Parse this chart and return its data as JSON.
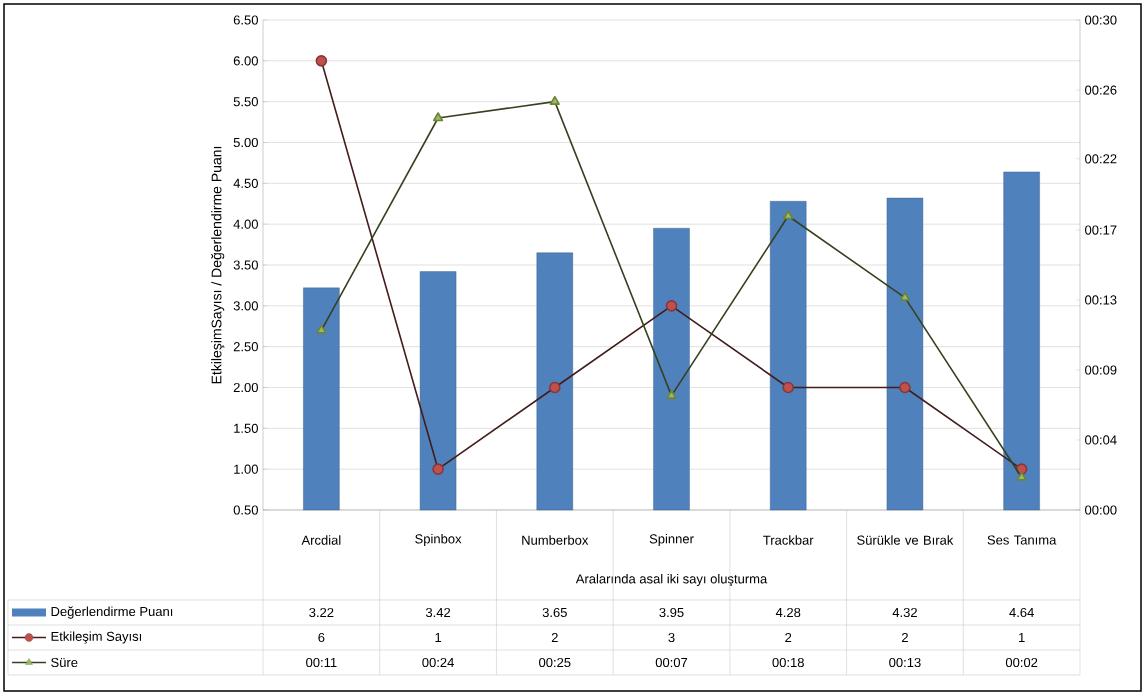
{
  "chart_data": {
    "type": "bar",
    "xlabel": "Aralarında asal iki sayı oluşturma",
    "ylabel": "EtkileşimSayısı / Değerlendirme Puanı",
    "categories": [
      "Arcdial",
      "Spinbox",
      "Numberbox",
      "Spinner",
      "Trackbar",
      "Sürükle ve Bırak",
      "Ses Tanıma"
    ],
    "series": [
      {
        "name": "Değerlendirme Puanı",
        "color": "#4f81bd",
        "values": [
          3.22,
          3.42,
          3.65,
          3.95,
          4.28,
          4.32,
          4.64
        ],
        "value_labels": [
          "3.22",
          "3.42",
          "3.65",
          "3.95",
          "4.28",
          "4.32",
          "4.64"
        ]
      },
      {
        "name": "Etkileşim Sayısı",
        "type": "line",
        "color": "#c0504d",
        "marker": "circle",
        "values": [
          6,
          1,
          2,
          3,
          2,
          2,
          1
        ],
        "value_labels": [
          "6",
          "1",
          "2",
          "3",
          "2",
          "2",
          "1"
        ]
      },
      {
        "name": "Süre",
        "type": "line",
        "axis": "y2",
        "color": "#9bbb59",
        "marker": "triangle",
        "values": [
          11,
          24,
          25,
          7,
          18,
          13,
          2
        ],
        "value_labels": [
          "00:11",
          "00:24",
          "00:25",
          "00:07",
          "00:18",
          "00:13",
          "00:02"
        ]
      }
    ],
    "ylim": [
      0.5,
      6.5
    ],
    "yticks": [
      {
        "value": 0.5,
        "label": "0.50"
      },
      {
        "value": 1,
        "label": "1.00"
      },
      {
        "value": 1.5,
        "label": "1.50"
      },
      {
        "value": 2,
        "label": "2.00"
      },
      {
        "value": 2.5,
        "label": "2.50"
      },
      {
        "value": 3,
        "label": "3.00"
      },
      {
        "value": 3.5,
        "label": "3.50"
      },
      {
        "value": 4,
        "label": "4.00"
      },
      {
        "value": 4.5,
        "label": "4.50"
      },
      {
        "value": 5,
        "label": "5.00"
      },
      {
        "value": 5.5,
        "label": "5.50"
      },
      {
        "value": 6,
        "label": "6.00"
      },
      {
        "value": 6.5,
        "label": "6.50"
      }
    ],
    "y2lim": [
      0,
      30
    ],
    "y2ticks": [
      {
        "value": 0,
        "label": "00:00"
      },
      {
        "value": 4.29,
        "label": "00:04"
      },
      {
        "value": 8.57,
        "label": "00:09"
      },
      {
        "value": 12.86,
        "label": "00:13"
      },
      {
        "value": 17.14,
        "label": "00:17"
      },
      {
        "value": 21.5,
        "label": "00:22"
      },
      {
        "value": 25.71,
        "label": "00:26"
      },
      {
        "value": 30,
        "label": "00:30"
      }
    ],
    "grid": "y",
    "legend": "bottom left"
  }
}
